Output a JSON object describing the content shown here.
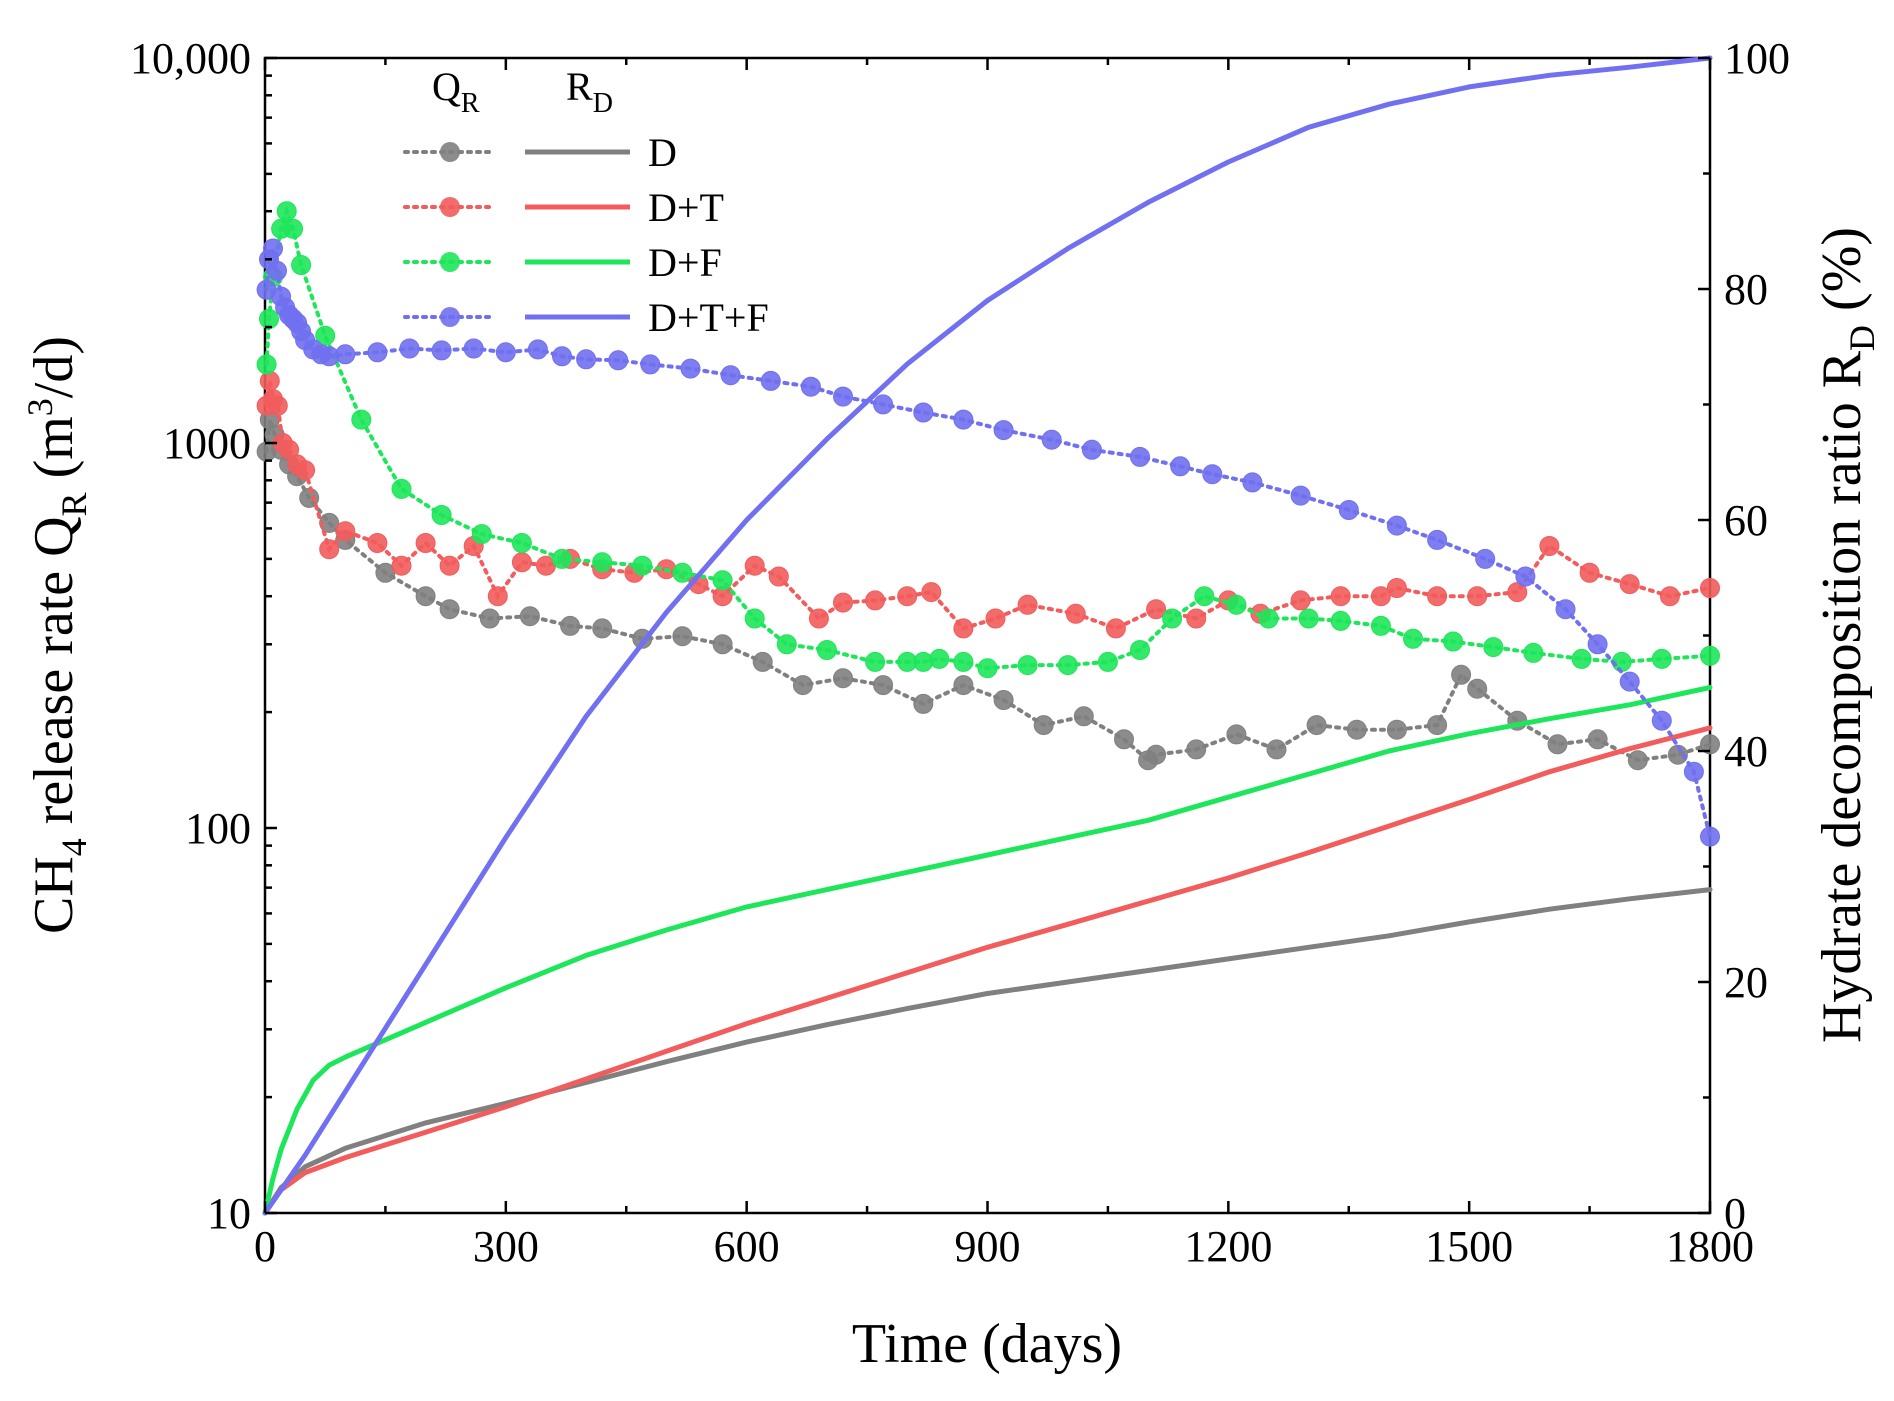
{
  "chart_data": {
    "type": "line",
    "x_axis": {
      "label": "Time (days)",
      "range": [
        0,
        1800
      ],
      "ticks": [
        0,
        300,
        600,
        900,
        1200,
        1500,
        1800
      ],
      "tick_labels": [
        "0",
        "300",
        "600",
        "900",
        "1200",
        "1500",
        "1800"
      ]
    },
    "y_left": {
      "label_main": "CH",
      "label_sub1": "4",
      "label_mid": " release rate Q",
      "label_sub2": "R",
      "label_tail": " (m",
      "label_sup": "3",
      "label_end": "/d)",
      "scale": "log",
      "range": [
        10,
        10000
      ],
      "ticks": [
        10,
        100,
        1000,
        10000
      ],
      "tick_labels": [
        "10",
        "100",
        "1000",
        "10,000"
      ]
    },
    "y_right": {
      "label_main": "Hydrate decomposition ratio R",
      "label_sub": "D",
      "label_end": " (%)",
      "range": [
        0,
        100
      ],
      "ticks": [
        0,
        20,
        40,
        60,
        80,
        100
      ],
      "tick_labels": [
        "0",
        "20",
        "40",
        "60",
        "80",
        "100"
      ]
    },
    "legend": {
      "position": "top-left",
      "header_q": "Q",
      "header_q_sub": "R",
      "header_r": "R",
      "header_r_sub": "D"
    },
    "series": [
      {
        "name": "D",
        "color": "#808080",
        "q_r": [
          [
            2,
            950
          ],
          [
            6,
            1150
          ],
          [
            12,
            1050
          ],
          [
            20,
            960
          ],
          [
            30,
            880
          ],
          [
            40,
            820
          ],
          [
            55,
            720
          ],
          [
            80,
            620
          ],
          [
            100,
            560
          ],
          [
            150,
            460
          ],
          [
            200,
            400
          ],
          [
            230,
            370
          ],
          [
            280,
            350
          ],
          [
            330,
            355
          ],
          [
            380,
            335
          ],
          [
            420,
            330
          ],
          [
            470,
            310
          ],
          [
            520,
            315
          ],
          [
            570,
            300
          ],
          [
            620,
            270
          ],
          [
            670,
            235
          ],
          [
            720,
            245
          ],
          [
            770,
            235
          ],
          [
            820,
            210
          ],
          [
            870,
            235
          ],
          [
            920,
            215
          ],
          [
            970,
            185
          ],
          [
            1020,
            195
          ],
          [
            1070,
            170
          ],
          [
            1100,
            150
          ],
          [
            1110,
            155
          ],
          [
            1160,
            160
          ],
          [
            1210,
            175
          ],
          [
            1260,
            160
          ],
          [
            1310,
            185
          ],
          [
            1360,
            180
          ],
          [
            1410,
            180
          ],
          [
            1460,
            185
          ],
          [
            1490,
            250
          ],
          [
            1510,
            230
          ],
          [
            1560,
            190
          ],
          [
            1610,
            165
          ],
          [
            1660,
            170
          ],
          [
            1710,
            150
          ],
          [
            1760,
            155
          ],
          [
            1800,
            165
          ]
        ],
        "r_d": [
          [
            0,
            0
          ],
          [
            20,
            2.2
          ],
          [
            50,
            4.0
          ],
          [
            100,
            5.6
          ],
          [
            200,
            7.8
          ],
          [
            300,
            9.5
          ],
          [
            400,
            11.3
          ],
          [
            500,
            13.1
          ],
          [
            600,
            14.8
          ],
          [
            700,
            16.3
          ],
          [
            800,
            17.7
          ],
          [
            900,
            19.0
          ],
          [
            1000,
            20.0
          ],
          [
            1100,
            21.0
          ],
          [
            1200,
            22.0
          ],
          [
            1300,
            23.0
          ],
          [
            1400,
            24.0
          ],
          [
            1500,
            25.2
          ],
          [
            1600,
            26.3
          ],
          [
            1700,
            27.2
          ],
          [
            1800,
            28.0
          ]
        ]
      },
      {
        "name": "D+T",
        "color": "#F25C5C",
        "q_r": [
          [
            2,
            1250
          ],
          [
            6,
            1450
          ],
          [
            10,
            1300
          ],
          [
            16,
            1250
          ],
          [
            22,
            1000
          ],
          [
            30,
            960
          ],
          [
            40,
            880
          ],
          [
            50,
            850
          ],
          [
            80,
            530
          ],
          [
            100,
            590
          ],
          [
            140,
            550
          ],
          [
            170,
            480
          ],
          [
            200,
            550
          ],
          [
            230,
            480
          ],
          [
            260,
            540
          ],
          [
            290,
            400
          ],
          [
            320,
            490
          ],
          [
            350,
            480
          ],
          [
            380,
            500
          ],
          [
            420,
            470
          ],
          [
            460,
            460
          ],
          [
            500,
            470
          ],
          [
            540,
            430
          ],
          [
            570,
            400
          ],
          [
            610,
            480
          ],
          [
            640,
            450
          ],
          [
            690,
            350
          ],
          [
            720,
            385
          ],
          [
            760,
            390
          ],
          [
            800,
            400
          ],
          [
            830,
            410
          ],
          [
            870,
            330
          ],
          [
            910,
            350
          ],
          [
            950,
            380
          ],
          [
            1010,
            360
          ],
          [
            1060,
            330
          ],
          [
            1110,
            370
          ],
          [
            1160,
            350
          ],
          [
            1200,
            390
          ],
          [
            1240,
            360
          ],
          [
            1290,
            390
          ],
          [
            1340,
            400
          ],
          [
            1390,
            400
          ],
          [
            1410,
            420
          ],
          [
            1460,
            400
          ],
          [
            1510,
            400
          ],
          [
            1560,
            410
          ],
          [
            1600,
            540
          ],
          [
            1650,
            460
          ],
          [
            1700,
            430
          ],
          [
            1750,
            400
          ],
          [
            1800,
            420
          ]
        ],
        "r_d": [
          [
            0,
            0
          ],
          [
            20,
            2.0
          ],
          [
            50,
            3.5
          ],
          [
            100,
            4.8
          ],
          [
            200,
            7.0
          ],
          [
            300,
            9.2
          ],
          [
            400,
            11.6
          ],
          [
            500,
            14.0
          ],
          [
            600,
            16.4
          ],
          [
            700,
            18.6
          ],
          [
            800,
            20.8
          ],
          [
            900,
            23.0
          ],
          [
            1000,
            25.0
          ],
          [
            1100,
            27.0
          ],
          [
            1200,
            29.0
          ],
          [
            1300,
            31.2
          ],
          [
            1400,
            33.5
          ],
          [
            1500,
            35.8
          ],
          [
            1600,
            38.2
          ],
          [
            1700,
            40.2
          ],
          [
            1800,
            42.0
          ]
        ]
      },
      {
        "name": "D+F",
        "color": "#1EE65A",
        "q_r": [
          [
            2,
            1600
          ],
          [
            5,
            2100
          ],
          [
            10,
            2700
          ],
          [
            20,
            3600
          ],
          [
            27,
            4000
          ],
          [
            35,
            3600
          ],
          [
            45,
            2900
          ],
          [
            75,
            1900
          ],
          [
            120,
            1150
          ],
          [
            170,
            760
          ],
          [
            220,
            650
          ],
          [
            270,
            580
          ],
          [
            320,
            550
          ],
          [
            370,
            500
          ],
          [
            420,
            490
          ],
          [
            470,
            480
          ],
          [
            520,
            460
          ],
          [
            570,
            440
          ],
          [
            610,
            350
          ],
          [
            650,
            300
          ],
          [
            700,
            290
          ],
          [
            760,
            270
          ],
          [
            800,
            270
          ],
          [
            820,
            270
          ],
          [
            840,
            275
          ],
          [
            870,
            270
          ],
          [
            900,
            260
          ],
          [
            950,
            265
          ],
          [
            1000,
            265
          ],
          [
            1050,
            270
          ],
          [
            1090,
            290
          ],
          [
            1130,
            350
          ],
          [
            1170,
            400
          ],
          [
            1210,
            380
          ],
          [
            1250,
            350
          ],
          [
            1300,
            350
          ],
          [
            1340,
            345
          ],
          [
            1390,
            335
          ],
          [
            1430,
            310
          ],
          [
            1480,
            305
          ],
          [
            1530,
            295
          ],
          [
            1580,
            285
          ],
          [
            1640,
            275
          ],
          [
            1690,
            270
          ],
          [
            1740,
            275
          ],
          [
            1800,
            280
          ]
        ],
        "r_d": [
          [
            0,
            0
          ],
          [
            10,
            3.0
          ],
          [
            20,
            5.5
          ],
          [
            40,
            9.0
          ],
          [
            60,
            11.5
          ],
          [
            80,
            12.8
          ],
          [
            100,
            13.5
          ],
          [
            150,
            15.0
          ],
          [
            200,
            16.5
          ],
          [
            300,
            19.5
          ],
          [
            400,
            22.3
          ],
          [
            500,
            24.5
          ],
          [
            600,
            26.5
          ],
          [
            700,
            28.0
          ],
          [
            800,
            29.5
          ],
          [
            900,
            31.0
          ],
          [
            1000,
            32.5
          ],
          [
            1100,
            34.0
          ],
          [
            1200,
            36.0
          ],
          [
            1300,
            38.0
          ],
          [
            1400,
            40.0
          ],
          [
            1500,
            41.5
          ],
          [
            1600,
            42.8
          ],
          [
            1700,
            44.0
          ],
          [
            1800,
            45.5
          ]
        ]
      },
      {
        "name": "D+T+F",
        "color": "#7070F0",
        "q_r": [
          [
            2,
            2500
          ],
          [
            5,
            3000
          ],
          [
            10,
            3200
          ],
          [
            15,
            2800
          ],
          [
            20,
            2400
          ],
          [
            25,
            2250
          ],
          [
            30,
            2150
          ],
          [
            35,
            2100
          ],
          [
            40,
            2050
          ],
          [
            45,
            1950
          ],
          [
            50,
            1850
          ],
          [
            60,
            1750
          ],
          [
            70,
            1700
          ],
          [
            80,
            1680
          ],
          [
            100,
            1700
          ],
          [
            140,
            1720
          ],
          [
            180,
            1760
          ],
          [
            220,
            1740
          ],
          [
            260,
            1760
          ],
          [
            300,
            1720
          ],
          [
            340,
            1750
          ],
          [
            370,
            1680
          ],
          [
            400,
            1650
          ],
          [
            440,
            1640
          ],
          [
            480,
            1600
          ],
          [
            530,
            1560
          ],
          [
            580,
            1500
          ],
          [
            630,
            1450
          ],
          [
            680,
            1400
          ],
          [
            720,
            1320
          ],
          [
            770,
            1260
          ],
          [
            820,
            1200
          ],
          [
            870,
            1150
          ],
          [
            920,
            1080
          ],
          [
            980,
            1020
          ],
          [
            1030,
            960
          ],
          [
            1090,
            920
          ],
          [
            1140,
            870
          ],
          [
            1180,
            830
          ],
          [
            1230,
            790
          ],
          [
            1290,
            730
          ],
          [
            1350,
            670
          ],
          [
            1410,
            610
          ],
          [
            1460,
            560
          ],
          [
            1520,
            500
          ],
          [
            1570,
            450
          ],
          [
            1620,
            370
          ],
          [
            1660,
            300
          ],
          [
            1700,
            240
          ],
          [
            1740,
            190
          ],
          [
            1780,
            140
          ],
          [
            1800,
            95
          ]
        ],
        "r_d": [
          [
            0,
            0
          ],
          [
            50,
            5.0
          ],
          [
            100,
            10.5
          ],
          [
            150,
            16.0
          ],
          [
            200,
            21.5
          ],
          [
            300,
            32.5
          ],
          [
            400,
            43.0
          ],
          [
            500,
            52.0
          ],
          [
            600,
            60.0
          ],
          [
            700,
            67.0
          ],
          [
            800,
            73.5
          ],
          [
            900,
            79.0
          ],
          [
            1000,
            83.5
          ],
          [
            1100,
            87.5
          ],
          [
            1200,
            91.0
          ],
          [
            1300,
            94.0
          ],
          [
            1400,
            96.0
          ],
          [
            1500,
            97.5
          ],
          [
            1600,
            98.5
          ],
          [
            1700,
            99.2
          ],
          [
            1800,
            100.0
          ]
        ]
      }
    ]
  }
}
